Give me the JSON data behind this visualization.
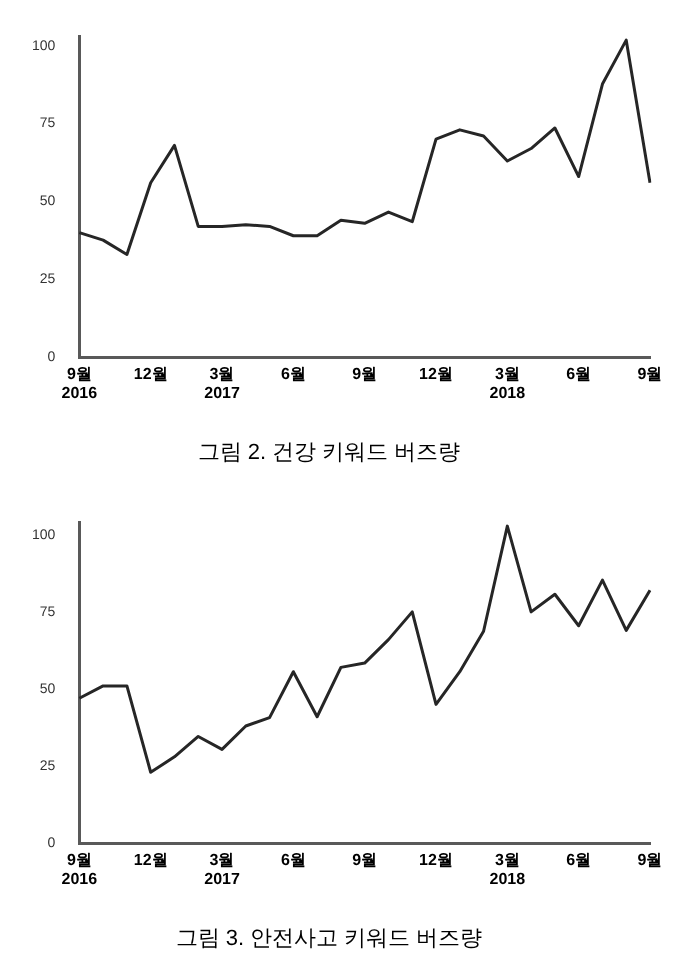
{
  "chart_data": [
    {
      "type": "line",
      "title": "그림 2. 건강 키워드 버즈량",
      "categories": [
        "9월\n2016",
        null,
        null,
        "12월",
        null,
        null,
        "3월\n2017",
        null,
        null,
        "6월",
        null,
        null,
        "9월",
        null,
        null,
        "12월",
        null,
        null,
        "3월\n2018",
        null,
        null,
        "6월",
        null,
        null,
        "9월"
      ],
      "series": [
        {
          "color": "#262626",
          "values": [
            40,
            37.6,
            33,
            56,
            68,
            42,
            42,
            42.5,
            42,
            39,
            39,
            44,
            43,
            46.6,
            43.5,
            70,
            73,
            71,
            63,
            67,
            73.6,
            58,
            87.7,
            101.8,
            56
          ]
        }
      ],
      "ylim": [
        0,
        103
      ],
      "yticks": [
        0,
        25,
        50,
        75,
        100
      ],
      "grid": false,
      "legend": false,
      "marker": "none",
      "line_style": "solid"
    },
    {
      "type": "line",
      "title": "그림 3. 안전사고 키워드 버즈량",
      "categories": [
        "9월\n2016",
        null,
        null,
        "12월",
        null,
        null,
        "3월\n2017",
        null,
        null,
        "6월",
        null,
        null,
        "9월",
        null,
        null,
        "12월",
        null,
        null,
        "3월\n2018",
        null,
        null,
        "6월",
        null,
        null,
        "9월"
      ],
      "series": [
        {
          "color": "#262626",
          "values": [
            47,
            51,
            51,
            23,
            28,
            34.6,
            30.4,
            38,
            40.7,
            55.6,
            41,
            57,
            58.4,
            66,
            75,
            45,
            55.6,
            68.7,
            102.8,
            75,
            80.7,
            70.5,
            85.3,
            69,
            82
          ]
        }
      ],
      "ylim": [
        0,
        104
      ],
      "yticks": [
        0,
        25,
        50,
        75,
        100
      ],
      "grid": false,
      "legend": false,
      "marker": "none",
      "line_style": "solid"
    }
  ]
}
